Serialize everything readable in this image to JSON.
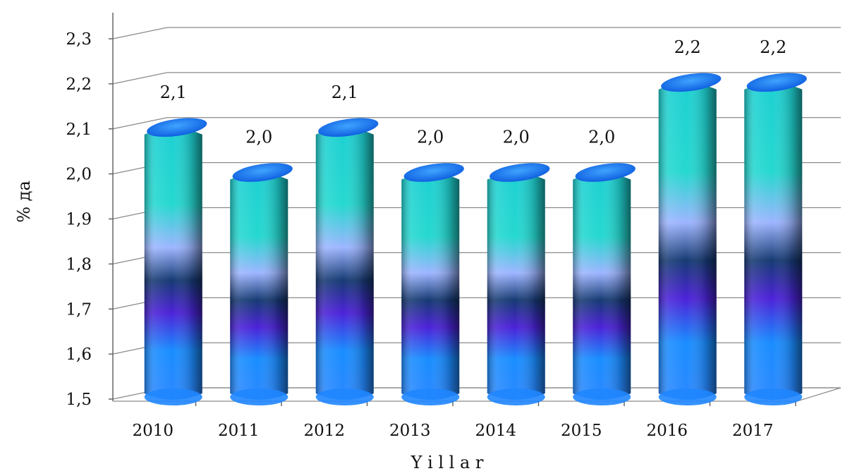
{
  "chart_data": {
    "type": "bar",
    "title": "",
    "xlabel": "Y i l l a r",
    "ylabel": "% да",
    "categories": [
      "2010",
      "2011",
      "2012",
      "2013",
      "2014",
      "2015",
      "2016",
      "2017"
    ],
    "values": [
      2.1,
      2.0,
      2.1,
      2.0,
      2.0,
      2.0,
      2.2,
      2.2
    ],
    "value_labels": [
      "2,1",
      "2,0",
      "2,1",
      "2,0",
      "2,0",
      "2,0",
      "2,2",
      "2,2"
    ],
    "ylim": [
      1.5,
      2.3
    ],
    "yticks": [
      1.5,
      1.6,
      1.7,
      1.8,
      1.9,
      2.0,
      2.1,
      2.2,
      2.3
    ],
    "ytick_labels": [
      "1,5",
      "1,6",
      "1,7",
      "1,8",
      "1,9",
      "2,0",
      "2,1",
      "2,2",
      "2,3"
    ],
    "grid": true,
    "style": "3d-cylinder",
    "colors": [
      "#1b86ff",
      "#4c22d8",
      "#7fa7ff",
      "#1fd0d4",
      "#16207a",
      "#2c7fd6"
    ]
  }
}
